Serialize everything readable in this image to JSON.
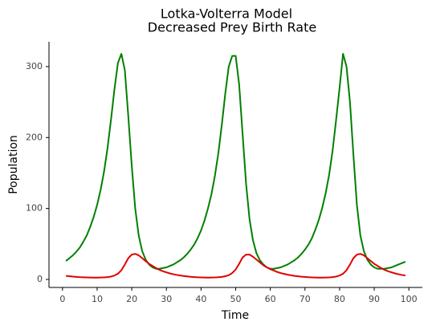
{
  "chart_data": {
    "type": "line",
    "title": "Lotka-Volterra Model",
    "subtitle": "Decreased Prey Birth Rate",
    "x_label": "Time",
    "y_label": "Population",
    "x": [
      1,
      2,
      3,
      4,
      5,
      6,
      7,
      8,
      9,
      10,
      11,
      12,
      13,
      14,
      15,
      16,
      17,
      18,
      19,
      20,
      21,
      22,
      23,
      24,
      25,
      26,
      27,
      28,
      29,
      30,
      31,
      32,
      33,
      34,
      35,
      36,
      37,
      38,
      39,
      40,
      41,
      42,
      43,
      44,
      45,
      46,
      47,
      48,
      49,
      50,
      51,
      52,
      53,
      54,
      55,
      56,
      57,
      58,
      59,
      60,
      61,
      62,
      63,
      64,
      65,
      66,
      67,
      68,
      69,
      70,
      71,
      72,
      73,
      74,
      75,
      76,
      77,
      78,
      79,
      80,
      81,
      82,
      83,
      84,
      85,
      86,
      87,
      88,
      89,
      90,
      91,
      92,
      93,
      94,
      95,
      96,
      97,
      98,
      99
    ],
    "series": [
      {
        "color": "#008000",
        "values": [
          26,
          30,
          34,
          39,
          45,
          53,
          62,
          74,
          88,
          105,
          126,
          152,
          185,
          225,
          268,
          305,
          318,
          295,
          230,
          160,
          100,
          62,
          40,
          28,
          21,
          17,
          15,
          15,
          16,
          17,
          19,
          21,
          24,
          27,
          31,
          36,
          42,
          49,
          58,
          69,
          83,
          100,
          120,
          146,
          178,
          218,
          262,
          300,
          315,
          315,
          275,
          205,
          135,
          85,
          55,
          37,
          27,
          21,
          17,
          15,
          15,
          16,
          17,
          19,
          21,
          24,
          27,
          31,
          36,
          42,
          49,
          58,
          70,
          84,
          101,
          122,
          148,
          182,
          225,
          270,
          318,
          300,
          250,
          175,
          105,
          62,
          40,
          28,
          21,
          17,
          15,
          15,
          15,
          16,
          17,
          19,
          21,
          23,
          25
        ]
      },
      {
        "color": "#e00000",
        "values": [
          5,
          4.5,
          4,
          3.5,
          3.2,
          3,
          2.8,
          2.7,
          2.6,
          2.6,
          2.7,
          2.9,
          3.3,
          4,
          5.5,
          8,
          13,
          21,
          30,
          35,
          36,
          34,
          30,
          26,
          22,
          19,
          16,
          13.5,
          11.5,
          10,
          8.5,
          7.3,
          6.3,
          5.5,
          4.8,
          4.2,
          3.7,
          3.3,
          3,
          2.8,
          2.7,
          2.6,
          2.7,
          2.8,
          3.1,
          3.6,
          4.5,
          6,
          9,
          14,
          22,
          31,
          35,
          35,
          32,
          28,
          24,
          20,
          17,
          14.5,
          12.5,
          10.5,
          9,
          7.8,
          6.7,
          5.8,
          5,
          4.4,
          3.9,
          3.5,
          3.1,
          2.9,
          2.7,
          2.6,
          2.6,
          2.7,
          2.9,
          3.3,
          4,
          5.5,
          8,
          13,
          21,
          30,
          35,
          36,
          34,
          30,
          26,
          22,
          19,
          16,
          13.5,
          11.5,
          10,
          8.5,
          7.3,
          6.3,
          5.5
        ]
      }
    ],
    "xlim": [
      -3.9,
      103.9
    ],
    "xticks": [
      0,
      10,
      20,
      30,
      40,
      50,
      60,
      70,
      80,
      90,
      100
    ],
    "ylim": [
      -11.3,
      335
    ],
    "yticks": [
      0,
      100,
      200,
      300
    ]
  }
}
